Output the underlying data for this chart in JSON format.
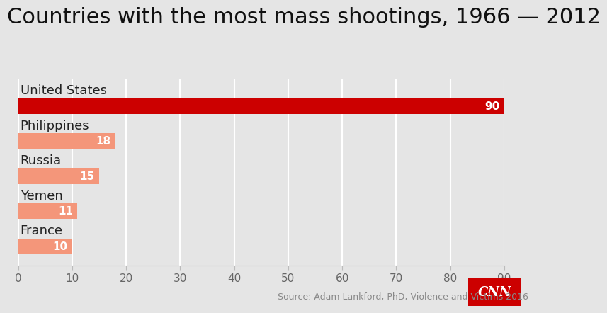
{
  "title": "Countries with the most mass shootings, 1966 — 2012",
  "categories": [
    "United States",
    "Philippines",
    "Russia",
    "Yemen",
    "France"
  ],
  "values": [
    90,
    18,
    15,
    11,
    10
  ],
  "bar_colors": [
    "#cc0000",
    "#f4967a",
    "#f4967a",
    "#f4967a",
    "#f4967a"
  ],
  "background_color": "#e5e5e5",
  "plot_background_color": "#e5e5e5",
  "xlim": [
    0,
    90
  ],
  "xticks": [
    0,
    10,
    20,
    30,
    40,
    50,
    60,
    70,
    80,
    90
  ],
  "title_fontsize": 22,
  "label_fontsize": 13,
  "value_fontsize": 11,
  "source_text": "Source: Adam Lankford, PhD; Violence and Victims 2016",
  "source_fontsize": 9,
  "cnn_box_color": "#cc0000",
  "cnn_text": "CNN",
  "grid_color": "#ffffff",
  "tick_color": "#666666",
  "tick_fontsize": 11
}
